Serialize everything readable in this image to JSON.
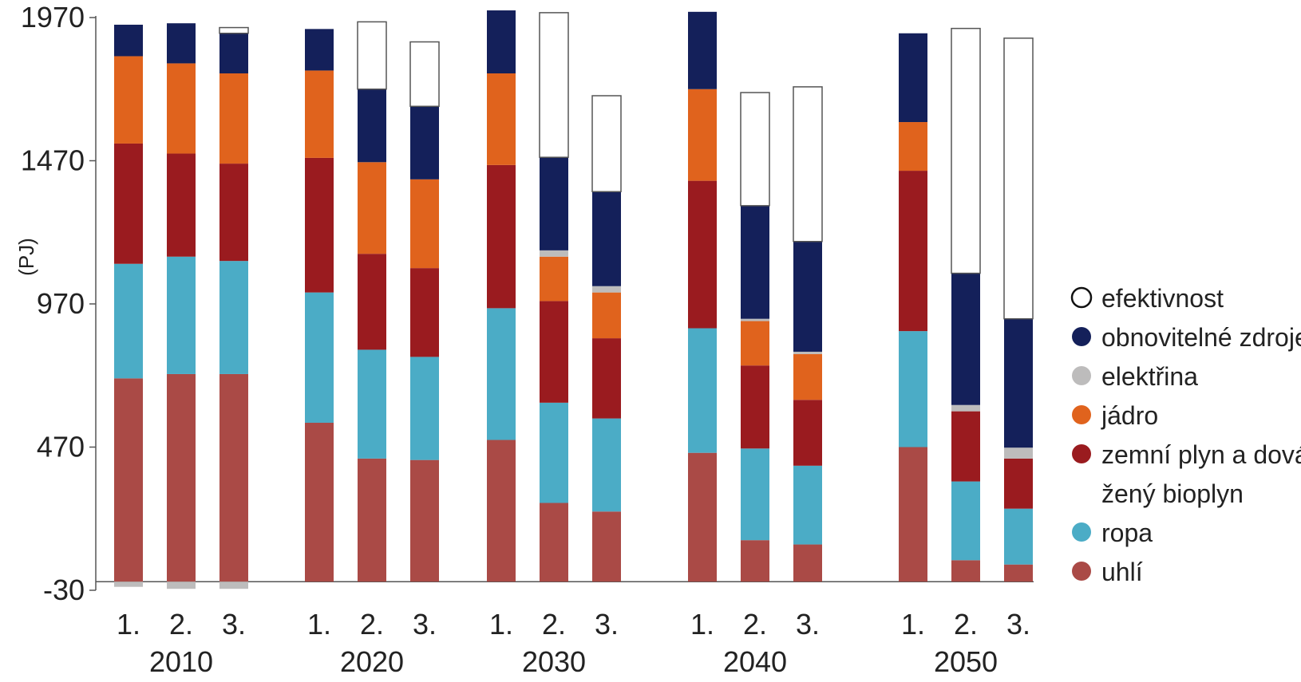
{
  "chart_data": {
    "type": "bar",
    "stacked": true,
    "ylabel": "(PJ)",
    "xlabel": "",
    "ylim": [
      -30,
      1970
    ],
    "y_ticks": [
      1970,
      1470,
      970,
      470,
      -30
    ],
    "groups": [
      {
        "label": "2010",
        "bars": [
          "1.",
          "2.",
          "3."
        ]
      },
      {
        "label": "2020",
        "bars": [
          "1.",
          "2.",
          "3."
        ]
      },
      {
        "label": "2030",
        "bars": [
          "1.",
          "2.",
          "3."
        ]
      },
      {
        "label": "2040",
        "bars": [
          "1.",
          "2.",
          "3."
        ]
      },
      {
        "label": "2050",
        "bars": [
          "1.",
          "2.",
          "3."
        ]
      }
    ],
    "series": [
      {
        "name": "uhlí",
        "color": "#aa4a46",
        "values": [
          710,
          725,
          725,
          555,
          430,
          425,
          495,
          275,
          245,
          450,
          145,
          130,
          470,
          75,
          60
        ]
      },
      {
        "name": "ropa",
        "color": "#4bacc6",
        "values": [
          400,
          410,
          395,
          455,
          380,
          360,
          460,
          350,
          325,
          435,
          320,
          275,
          405,
          275,
          195
        ]
      },
      {
        "name": "zemní plyn a dová-\nžený bioplyn",
        "color": "#9a1b1f",
        "values": [
          420,
          360,
          340,
          470,
          335,
          310,
          500,
          355,
          280,
          515,
          290,
          230,
          560,
          245,
          175
        ]
      },
      {
        "name": "jádro",
        "color": "#e0631d",
        "values": [
          305,
          315,
          315,
          305,
          320,
          310,
          320,
          155,
          160,
          320,
          155,
          160,
          170,
          0,
          0
        ]
      },
      {
        "name": "elektřina",
        "color": "#bdbcbc",
        "values": [
          -18,
          -25,
          -25,
          0,
          0,
          0,
          0,
          22,
          22,
          0,
          8,
          8,
          0,
          22,
          38
        ]
      },
      {
        "name": "obnovitelné zdroje",
        "color": "#14205a",
        "values": [
          110,
          140,
          140,
          145,
          255,
          255,
          220,
          325,
          330,
          270,
          395,
          385,
          310,
          460,
          450
        ]
      },
      {
        "name": "efektivnost",
        "color": "#ffffff",
        "values": [
          0,
          0,
          20,
          0,
          235,
          225,
          0,
          505,
          335,
          0,
          395,
          540,
          0,
          855,
          980
        ]
      }
    ]
  },
  "legend": {
    "items": [
      {
        "label": "efektivnost",
        "color": "#ffffff",
        "outline": true
      },
      {
        "label": "obnovitelné zdroje",
        "color": "#14205a"
      },
      {
        "label": "elektřina",
        "color": "#bdbcbc"
      },
      {
        "label": "jádro",
        "color": "#e0631d"
      },
      {
        "label": "zemní plyn a dová-",
        "label2": "žený bioplyn",
        "color": "#9a1b1f"
      },
      {
        "label": "ropa",
        "color": "#4bacc6"
      },
      {
        "label": "uhlí",
        "color": "#aa4a46"
      }
    ]
  }
}
